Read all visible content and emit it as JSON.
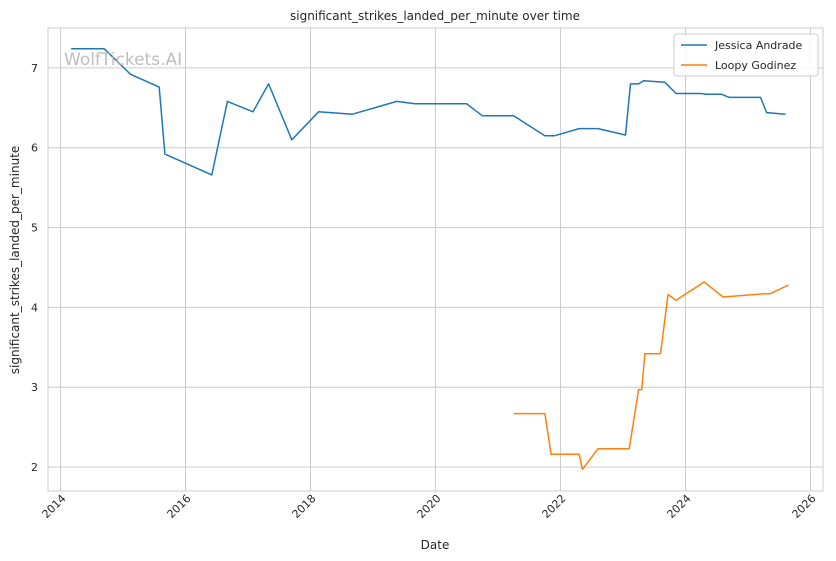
{
  "watermark": "WolfTickets.AI",
  "chart_data": {
    "type": "line",
    "title": "significant_strikes_landed_per_minute over time",
    "xlabel": "Date",
    "ylabel": "significant_strikes_landed_per_minute",
    "xlim": [
      2013.8,
      2026.2
    ],
    "ylim": [
      1.7,
      7.5
    ],
    "xticks": [
      2014,
      2016,
      2018,
      2020,
      2022,
      2024,
      2026
    ],
    "xtick_labels": [
      "2014",
      "2016",
      "2018",
      "2020",
      "2022",
      "2024",
      "2026"
    ],
    "yticks": [
      2,
      3,
      4,
      5,
      6,
      7
    ],
    "ytick_labels": [
      "2",
      "3",
      "4",
      "5",
      "6",
      "7"
    ],
    "grid": true,
    "legend_position": "top-right",
    "series": [
      {
        "name": "Jessica Andrade",
        "color": "#1f77b4",
        "points": [
          [
            2014.17,
            7.24
          ],
          [
            2014.7,
            7.24
          ],
          [
            2015.12,
            6.92
          ],
          [
            2015.58,
            6.76
          ],
          [
            2015.67,
            5.92
          ],
          [
            2016.42,
            5.66
          ],
          [
            2016.67,
            6.58
          ],
          [
            2017.08,
            6.45
          ],
          [
            2017.33,
            6.8
          ],
          [
            2017.7,
            6.1
          ],
          [
            2018.13,
            6.45
          ],
          [
            2018.67,
            6.42
          ],
          [
            2019.38,
            6.58
          ],
          [
            2019.67,
            6.55
          ],
          [
            2020.5,
            6.55
          ],
          [
            2020.75,
            6.4
          ],
          [
            2021.25,
            6.4
          ],
          [
            2021.75,
            6.15
          ],
          [
            2021.9,
            6.15
          ],
          [
            2022.3,
            6.24
          ],
          [
            2022.6,
            6.24
          ],
          [
            2023.04,
            6.16
          ],
          [
            2023.12,
            6.8
          ],
          [
            2023.25,
            6.8
          ],
          [
            2023.33,
            6.84
          ],
          [
            2023.67,
            6.82
          ],
          [
            2023.85,
            6.68
          ],
          [
            2024.25,
            6.68
          ],
          [
            2024.33,
            6.67
          ],
          [
            2024.58,
            6.67
          ],
          [
            2024.7,
            6.63
          ],
          [
            2025.2,
            6.63
          ],
          [
            2025.3,
            6.44
          ],
          [
            2025.6,
            6.42
          ]
        ]
      },
      {
        "name": "Loopy Godinez",
        "color": "#ff7f0e",
        "points": [
          [
            2021.25,
            2.67
          ],
          [
            2021.75,
            2.67
          ],
          [
            2021.85,
            2.16
          ],
          [
            2022.3,
            2.16
          ],
          [
            2022.35,
            1.97
          ],
          [
            2022.6,
            2.23
          ],
          [
            2023.1,
            2.23
          ],
          [
            2023.25,
            2.97
          ],
          [
            2023.3,
            2.97
          ],
          [
            2023.35,
            3.42
          ],
          [
            2023.6,
            3.42
          ],
          [
            2023.72,
            4.16
          ],
          [
            2023.85,
            4.09
          ],
          [
            2024.3,
            4.32
          ],
          [
            2024.6,
            4.13
          ],
          [
            2025.25,
            4.17
          ],
          [
            2025.35,
            4.17
          ],
          [
            2025.65,
            4.28
          ]
        ]
      }
    ]
  }
}
